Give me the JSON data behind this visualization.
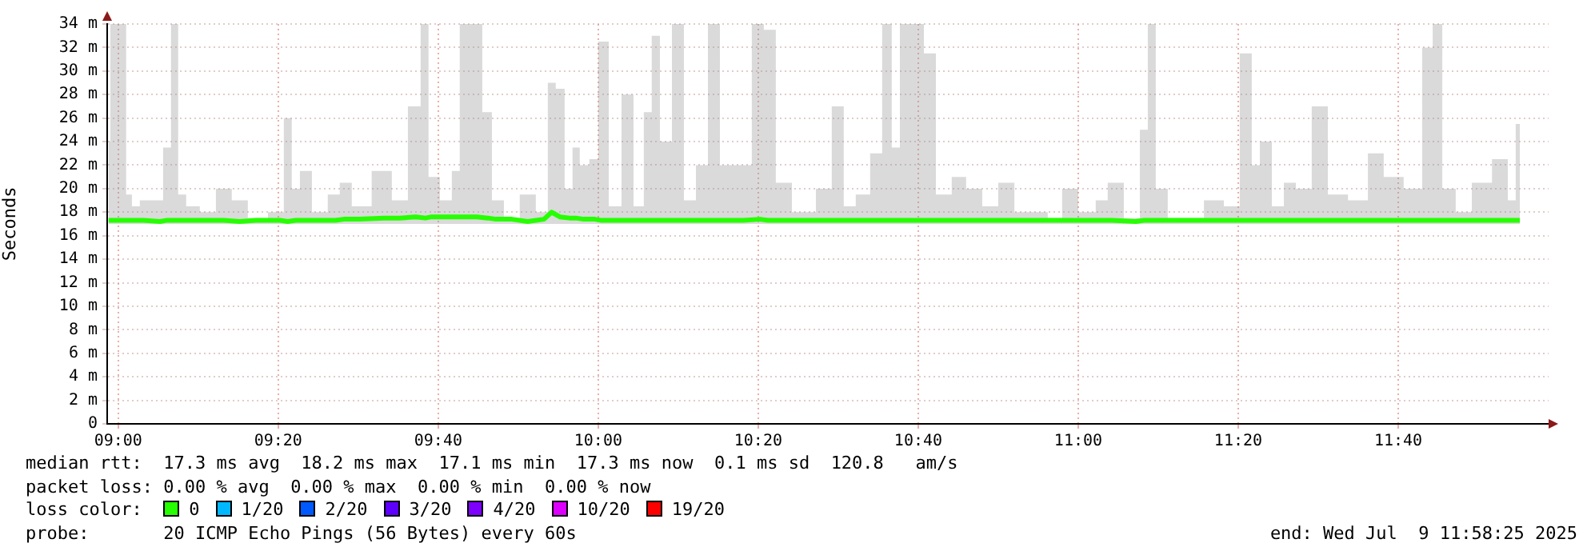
{
  "chart_data": {
    "type": "line",
    "ylabel": "Seconds",
    "legend_title": "loss color:",
    "legend": "bottom",
    "grid": true,
    "marker": "none",
    "line_style": "solid",
    "xlim": [
      8.977,
      11.98
    ],
    "xticks": [
      {
        "value": 9,
        "label": "09:00"
      },
      {
        "value": 9.3333,
        "label": "09:20"
      },
      {
        "value": 9.6667,
        "label": "09:40"
      },
      {
        "value": 10,
        "label": "10:00"
      },
      {
        "value": 10.3333,
        "label": "10:20"
      },
      {
        "value": 10.6667,
        "label": "10:40"
      },
      {
        "value": 11,
        "label": "11:00"
      },
      {
        "value": 11.3333,
        "label": "11:20"
      },
      {
        "value": 11.6667,
        "label": "11:40"
      }
    ],
    "ylim": [
      0,
      34
    ],
    "yticks": [
      0,
      {
        "value": 2,
        "label": "2 m"
      },
      {
        "value": 4,
        "label": "4 m"
      },
      {
        "value": 6,
        "label": "6 m"
      },
      {
        "value": 8,
        "label": "8 m"
      },
      {
        "value": 10,
        "label": "10 m"
      },
      {
        "value": 12,
        "label": "12 m"
      },
      {
        "value": 14,
        "label": "14 m"
      },
      {
        "value": 16,
        "label": "16 m"
      },
      {
        "value": 18,
        "label": "18 m"
      },
      {
        "value": 20,
        "label": "20 m"
      },
      {
        "value": 22,
        "label": "22 m"
      },
      {
        "value": 24,
        "label": "24 m"
      },
      {
        "value": 26,
        "label": "26 m"
      },
      {
        "value": 28,
        "label": "28 m"
      },
      {
        "value": 30,
        "label": "30 m"
      },
      {
        "value": 32,
        "label": "32 m"
      },
      {
        "value": 34,
        "label": "34 m"
      }
    ],
    "x": [
      8.98,
      8.987,
      9.013,
      9.02,
      9.037,
      9.053,
      9.087,
      9.1,
      9.12,
      9.13,
      9.153,
      9.187,
      9.22,
      9.253,
      9.287,
      9.337,
      9.353,
      9.37,
      9.387,
      9.42,
      9.453,
      9.47,
      9.503,
      9.553,
      9.587,
      9.62,
      9.64,
      9.653,
      9.687,
      9.703,
      9.72,
      9.747,
      9.77,
      9.787,
      9.82,
      9.853,
      9.887,
      9.903,
      9.92,
      9.94,
      9.953,
      9.97,
      9.993,
      10.007,
      10.037,
      10.06,
      10.087,
      10.103,
      10.12,
      10.137,
      10.17,
      10.187,
      10.22,
      10.237,
      10.27,
      10.303,
      10.337,
      10.353,
      10.387,
      10.42,
      10.437,
      10.47,
      10.503,
      10.52,
      10.553,
      10.58,
      10.603,
      10.62,
      10.637,
      10.67,
      10.687,
      10.72,
      10.753,
      10.78,
      10.82,
      10.847,
      10.887,
      10.92,
      10.953,
      10.98,
      11.02,
      11.053,
      11.07,
      11.12,
      11.137,
      11.153,
      11.17,
      11.203,
      11.237,
      11.287,
      11.32,
      11.353,
      11.37,
      11.387,
      11.42,
      11.437,
      11.47,
      11.503,
      11.537,
      11.587,
      11.62,
      11.653,
      11.703,
      11.73,
      11.747,
      11.77,
      11.803,
      11.837,
      11.887,
      11.903,
      11.92
    ],
    "series": [
      {
        "name": "0",
        "color": "#26ff00",
        "values": [
          17.3,
          17.3,
          17.3,
          17.3,
          17.3,
          17.3,
          17.2,
          17.3,
          17.3,
          17.3,
          17.3,
          17.3,
          17.3,
          17.2,
          17.3,
          17.3,
          17.2,
          17.3,
          17.3,
          17.3,
          17.3,
          17.4,
          17.4,
          17.5,
          17.5,
          17.6,
          17.5,
          17.6,
          17.6,
          17.6,
          17.6,
          17.6,
          17.5,
          17.4,
          17.4,
          17.2,
          17.4,
          18.0,
          17.6,
          17.5,
          17.5,
          17.4,
          17.4,
          17.3,
          17.3,
          17.3,
          17.3,
          17.3,
          17.3,
          17.3,
          17.3,
          17.3,
          17.3,
          17.3,
          17.3,
          17.3,
          17.4,
          17.3,
          17.3,
          17.3,
          17.3,
          17.3,
          17.3,
          17.3,
          17.3,
          17.3,
          17.3,
          17.3,
          17.3,
          17.3,
          17.3,
          17.3,
          17.3,
          17.3,
          17.3,
          17.3,
          17.3,
          17.3,
          17.3,
          17.3,
          17.3,
          17.3,
          17.3,
          17.2,
          17.3,
          17.3,
          17.3,
          17.3,
          17.3,
          17.3,
          17.3,
          17.3,
          17.3,
          17.3,
          17.3,
          17.3,
          17.3,
          17.3,
          17.3,
          17.3,
          17.3,
          17.3,
          17.3,
          17.3,
          17.3,
          17.3,
          17.3,
          17.3,
          17.3,
          17.3,
          17.3
        ],
        "lower": [
          17.0,
          17.0,
          17.0,
          17.0,
          17.0,
          17.0,
          17.0,
          17.0,
          17.0,
          17.0,
          17.0,
          17.0,
          17.0,
          17.0,
          17.0,
          17.0,
          17.0,
          17.0,
          17.0,
          17.0,
          17.0,
          17.0,
          17.0,
          17.0,
          17.0,
          17.0,
          17.0,
          17.0,
          17.0,
          17.0,
          17.0,
          17.0,
          17.0,
          17.0,
          17.0,
          17.0,
          17.0,
          17.0,
          17.0,
          17.0,
          17.0,
          17.0,
          17.0,
          17.0,
          17.0,
          17.0,
          17.0,
          17.0,
          17.0,
          17.0,
          17.0,
          17.0,
          17.0,
          17.0,
          17.0,
          17.0,
          17.0,
          17.0,
          17.0,
          17.0,
          17.0,
          17.0,
          17.0,
          17.0,
          17.0,
          17.0,
          17.0,
          17.0,
          17.0,
          17.0,
          17.0,
          17.0,
          17.0,
          17.0,
          17.0,
          17.0,
          17.0,
          17.0,
          17.0,
          17.0,
          17.0,
          17.0,
          17.0,
          17.0,
          17.0,
          17.0,
          17.0,
          17.0,
          17.0,
          17.0,
          17.0,
          17.0,
          17.0,
          17.0,
          17.0,
          17.0,
          17.0,
          17.0,
          17.0,
          17.0,
          17.0,
          17.0,
          17.0,
          17.0,
          17.0,
          17.0,
          17.0,
          17.0,
          17.0,
          17.0,
          17.0
        ],
        "upper": [
          24,
          34,
          34,
          19.5,
          18.5,
          19,
          19,
          23.5,
          34,
          19.5,
          18.5,
          18,
          20,
          19,
          17.5,
          18,
          26,
          20,
          21.5,
          18,
          19.5,
          20.5,
          18.5,
          21.5,
          19,
          27,
          34,
          21,
          19,
          21.5,
          34,
          34,
          26.5,
          19,
          17.5,
          19.5,
          18,
          29,
          28.5,
          20,
          23.5,
          22,
          22.5,
          32.5,
          18.5,
          28,
          18.5,
          26.5,
          33,
          24,
          34,
          19,
          22,
          34,
          22,
          22,
          34,
          33.5,
          20.5,
          18,
          18,
          20,
          27,
          18.5,
          19.5,
          23,
          34,
          23.5,
          34,
          34,
          31.5,
          19.5,
          21,
          20,
          18.5,
          20.5,
          18,
          18,
          17.5,
          20,
          18,
          19,
          20.5,
          17.5,
          25,
          34,
          20,
          17.5,
          17.5,
          19,
          18.5,
          31.5,
          22,
          24,
          18.5,
          20.5,
          20,
          27,
          19.5,
          19,
          23,
          21,
          20,
          32,
          34,
          20,
          18,
          20.5,
          22.5,
          19,
          25.5
        ]
      },
      {
        "name": "1/20",
        "color": "#00b8ff",
        "values": [
          null,
          null,
          null,
          null,
          null,
          null,
          null,
          null,
          null,
          null,
          null,
          null,
          null,
          null,
          null,
          null,
          null,
          null,
          null,
          null,
          null,
          null,
          null,
          null,
          null,
          null,
          null,
          null,
          null,
          null,
          null,
          null,
          null,
          null,
          null,
          null,
          null,
          null,
          null,
          null,
          null,
          null,
          null,
          null,
          null,
          null,
          null,
          null,
          null,
          null,
          null,
          null,
          null,
          null,
          null,
          null,
          null,
          null,
          null,
          null,
          null,
          null,
          null,
          null,
          null,
          null,
          null,
          null,
          null,
          null,
          null,
          null,
          null,
          null,
          null,
          null,
          null,
          null,
          null,
          null,
          null,
          null,
          null,
          null,
          null,
          null,
          null,
          null,
          null,
          null,
          null,
          null,
          null,
          null,
          null,
          null,
          null,
          null,
          null,
          null,
          null,
          null,
          null,
          null,
          null,
          null,
          null,
          null,
          null,
          null,
          null
        ]
      },
      {
        "name": "2/20",
        "color": "#0059ff",
        "values": [
          null,
          null,
          null,
          null,
          null,
          null,
          null,
          null,
          null,
          null,
          null,
          null,
          null,
          null,
          null,
          null,
          null,
          null,
          null,
          null,
          null,
          null,
          null,
          null,
          null,
          null,
          null,
          null,
          null,
          null,
          null,
          null,
          null,
          null,
          null,
          null,
          null,
          null,
          null,
          null,
          null,
          null,
          null,
          null,
          null,
          null,
          null,
          null,
          null,
          null,
          null,
          null,
          null,
          null,
          null,
          null,
          null,
          null,
          null,
          null,
          null,
          null,
          null,
          null,
          null,
          null,
          null,
          null,
          null,
          null,
          null,
          null,
          null,
          null,
          null,
          null,
          null,
          null,
          null,
          null,
          null,
          null,
          null,
          null,
          null,
          null,
          null,
          null,
          null,
          null,
          null,
          null,
          null,
          null,
          null,
          null,
          null,
          null,
          null,
          null,
          null,
          null,
          null,
          null,
          null,
          null,
          null,
          null,
          null,
          null,
          null
        ]
      },
      {
        "name": "3/20",
        "color": "#5e00ff",
        "values": [
          null,
          null,
          null,
          null,
          null,
          null,
          null,
          null,
          null,
          null,
          null,
          null,
          null,
          null,
          null,
          null,
          null,
          null,
          null,
          null,
          null,
          null,
          null,
          null,
          null,
          null,
          null,
          null,
          null,
          null,
          null,
          null,
          null,
          null,
          null,
          null,
          null,
          null,
          null,
          null,
          null,
          null,
          null,
          null,
          null,
          null,
          null,
          null,
          null,
          null,
          null,
          null,
          null,
          null,
          null,
          null,
          null,
          null,
          null,
          null,
          null,
          null,
          null,
          null,
          null,
          null,
          null,
          null,
          null,
          null,
          null,
          null,
          null,
          null,
          null,
          null,
          null,
          null,
          null,
          null,
          null,
          null,
          null,
          null,
          null,
          null,
          null,
          null,
          null,
          null,
          null,
          null,
          null,
          null,
          null,
          null,
          null,
          null,
          null,
          null,
          null,
          null,
          null,
          null,
          null,
          null,
          null,
          null,
          null,
          null,
          null
        ]
      },
      {
        "name": "4/20",
        "color": "#7e00ff",
        "values": [
          null,
          null,
          null,
          null,
          null,
          null,
          null,
          null,
          null,
          null,
          null,
          null,
          null,
          null,
          null,
          null,
          null,
          null,
          null,
          null,
          null,
          null,
          null,
          null,
          null,
          null,
          null,
          null,
          null,
          null,
          null,
          null,
          null,
          null,
          null,
          null,
          null,
          null,
          null,
          null,
          null,
          null,
          null,
          null,
          null,
          null,
          null,
          null,
          null,
          null,
          null,
          null,
          null,
          null,
          null,
          null,
          null,
          null,
          null,
          null,
          null,
          null,
          null,
          null,
          null,
          null,
          null,
          null,
          null,
          null,
          null,
          null,
          null,
          null,
          null,
          null,
          null,
          null,
          null,
          null,
          null,
          null,
          null,
          null,
          null,
          null,
          null,
          null,
          null,
          null,
          null,
          null,
          null,
          null,
          null,
          null,
          null,
          null,
          null,
          null,
          null,
          null,
          null,
          null,
          null,
          null,
          null,
          null,
          null,
          null,
          null
        ]
      },
      {
        "name": "10/20",
        "color": "#dd00ff",
        "values": [
          null,
          null,
          null,
          null,
          null,
          null,
          null,
          null,
          null,
          null,
          null,
          null,
          null,
          null,
          null,
          null,
          null,
          null,
          null,
          null,
          null,
          null,
          null,
          null,
          null,
          null,
          null,
          null,
          null,
          null,
          null,
          null,
          null,
          null,
          null,
          null,
          null,
          null,
          null,
          null,
          null,
          null,
          null,
          null,
          null,
          null,
          null,
          null,
          null,
          null,
          null,
          null,
          null,
          null,
          null,
          null,
          null,
          null,
          null,
          null,
          null,
          null,
          null,
          null,
          null,
          null,
          null,
          null,
          null,
          null,
          null,
          null,
          null,
          null,
          null,
          null,
          null,
          null,
          null,
          null,
          null,
          null,
          null,
          null,
          null,
          null,
          null,
          null,
          null,
          null,
          null,
          null,
          null,
          null,
          null,
          null,
          null,
          null,
          null,
          null,
          null,
          null,
          null,
          null,
          null,
          null,
          null,
          null,
          null,
          null,
          null
        ]
      },
      {
        "name": "19/20",
        "color": "#ff0000",
        "values": [
          null,
          null,
          null,
          null,
          null,
          null,
          null,
          null,
          null,
          null,
          null,
          null,
          null,
          null,
          null,
          null,
          null,
          null,
          null,
          null,
          null,
          null,
          null,
          null,
          null,
          null,
          null,
          null,
          null,
          null,
          null,
          null,
          null,
          null,
          null,
          null,
          null,
          null,
          null,
          null,
          null,
          null,
          null,
          null,
          null,
          null,
          null,
          null,
          null,
          null,
          null,
          null,
          null,
          null,
          null,
          null,
          null,
          null,
          null,
          null,
          null,
          null,
          null,
          null,
          null,
          null,
          null,
          null,
          null,
          null,
          null,
          null,
          null,
          null,
          null,
          null,
          null,
          null,
          null,
          null,
          null,
          null,
          null,
          null,
          null,
          null,
          null,
          null,
          null,
          null,
          null,
          null,
          null,
          null,
          null,
          null,
          null,
          null,
          null,
          null,
          null,
          null,
          null,
          null,
          null,
          null,
          null,
          null,
          null,
          null,
          null
        ]
      }
    ],
    "annotations": [
      "median rtt:  17.3 ms avg  18.2 ms max  17.1 ms min  17.3 ms now  0.1 ms sd  120.8   am/s",
      "packet loss: 0.00 % avg  0.00 % max  0.00 % min  0.00 % now",
      "probe:       20 ICMP Echo Pings (56 Bytes) every 60s",
      "end: Wed Jul  9 11:58:25 2025"
    ]
  }
}
